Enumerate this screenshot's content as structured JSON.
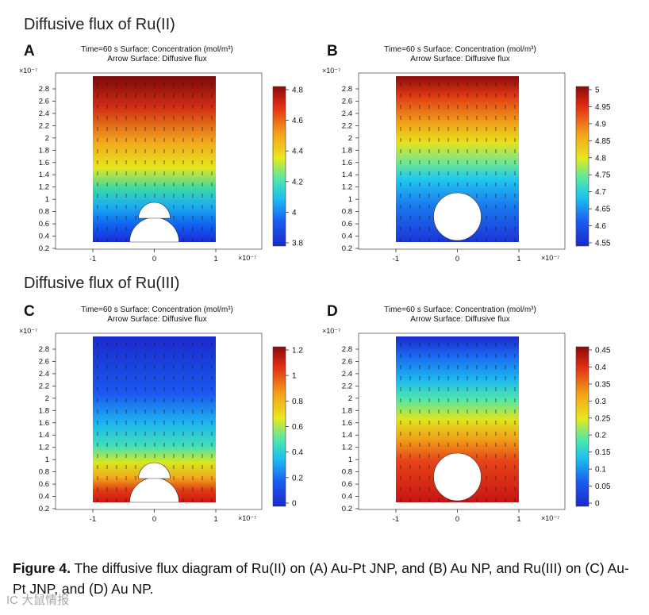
{
  "sections": [
    {
      "title": "Diffusive flux of Ru(II)"
    },
    {
      "title": "Diffusive flux of Ru(III)"
    }
  ],
  "panels": [
    {
      "letter": "A",
      "header_line1": "Time=60 s   Surface: Concentration (mol/m³)",
      "header_line2": "Arrow Surface: Diffusive flux",
      "y_exp": "×10⁻⁷",
      "x_exp": "×10⁻⁷",
      "y_ticks": [
        "2.8",
        "2.6",
        "2.4",
        "2.2",
        "2",
        "1.8",
        "1.6",
        "1.4",
        "1.2",
        "1",
        "0.8",
        "0.6",
        "0.4",
        "0.2"
      ],
      "x_ticks": [
        "-1",
        "0",
        "1"
      ],
      "colorbar_ticks": [
        "4.8",
        "4.6",
        "4.4",
        "4.2",
        "4",
        "3.8"
      ],
      "color_top": "#cc1414",
      "color_bottom": "#0a2fd8",
      "particle": "janus",
      "gradient": "ru2_janus"
    },
    {
      "letter": "B",
      "header_line1": "Time=60 s   Surface: Concentration (mol/m³)",
      "header_line2": "Arrow Surface: Diffusive flux",
      "y_exp": "×10⁻⁷",
      "x_exp": "×10⁻⁷",
      "y_ticks": [
        "2.8",
        "2.6",
        "2.4",
        "2.2",
        "2",
        "1.8",
        "1.6",
        "1.4",
        "1.2",
        "1",
        "0.8",
        "0.6",
        "0.4",
        "0.2"
      ],
      "x_ticks": [
        "-1",
        "0",
        "1"
      ],
      "colorbar_ticks": [
        "5",
        "4.95",
        "4.9",
        "4.85",
        "4.8",
        "4.75",
        "4.7",
        "4.65",
        "4.6",
        "4.55"
      ],
      "color_top": "#cc1414",
      "color_bottom": "#0a2fd8",
      "particle": "sphere",
      "gradient": "ru2_sphere"
    },
    {
      "letter": "C",
      "header_line1": "Time=60 s   Surface: Concentration (mol/m³)",
      "header_line2": "Arrow Surface: Diffusive flux",
      "y_exp": "×10⁻⁷",
      "x_exp": "×10⁻⁷",
      "y_ticks": [
        "2.8",
        "2.6",
        "2.4",
        "2.2",
        "2",
        "1.8",
        "1.6",
        "1.4",
        "1.2",
        "1",
        "0.8",
        "0.6",
        "0.4",
        "0.2"
      ],
      "x_ticks": [
        "-1",
        "0",
        "1"
      ],
      "colorbar_ticks": [
        "1.2",
        "1",
        "0.8",
        "0.6",
        "0.4",
        "0.2",
        "0"
      ],
      "color_top": "#1b2fd0",
      "color_bottom": "#d81818",
      "particle": "janus",
      "gradient": "ru3_janus"
    },
    {
      "letter": "D",
      "header_line1": "Time=60 s   Surface: Concentration (mol/m³)",
      "header_line2": "Arrow Surface: Diffusive flux",
      "y_exp": "×10⁻⁷",
      "x_exp": "×10⁻⁷",
      "y_ticks": [
        "2.8",
        "2.6",
        "2.4",
        "2.2",
        "2",
        "1.8",
        "1.6",
        "1.4",
        "1.2",
        "1",
        "0.8",
        "0.6",
        "0.4",
        "0.2"
      ],
      "x_ticks": [
        "-1",
        "0",
        "1"
      ],
      "colorbar_ticks": [
        "0.45",
        "0.4",
        "0.35",
        "0.3",
        "0.25",
        "0.2",
        "0.15",
        "0.1",
        "0.05",
        "0"
      ],
      "color_top": "#1b2fd0",
      "color_bottom": "#d81818",
      "particle": "sphere",
      "gradient": "ru3_sphere"
    }
  ],
  "caption": {
    "label": "Figure 4.",
    "text": " The diffusive flux diagram of Ru(II) on (A) Au-Pt JNP, and (B) Au NP, and Ru(III) on (C) Au-Pt JNP, and (D) Au NP."
  },
  "watermark": "IC 大鼠情报"
}
